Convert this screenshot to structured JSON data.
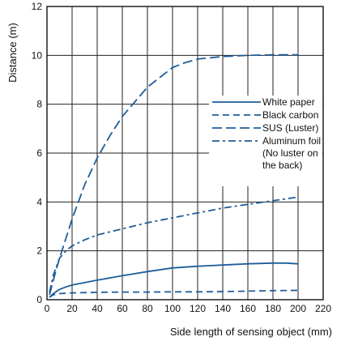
{
  "chart_data": {
    "type": "line",
    "title": "",
    "xlabel": "Side length of sensing object (mm)",
    "ylabel": "Distance (m)",
    "xlim": [
      0,
      220
    ],
    "ylim": [
      0,
      12
    ],
    "x_ticks": [
      0,
      20,
      40,
      60,
      80,
      100,
      120,
      140,
      160,
      180,
      200,
      220
    ],
    "y_ticks": [
      0,
      2,
      4,
      6,
      8,
      10,
      12
    ],
    "grid": true,
    "legend_placement": "center-right",
    "line_color": "#1f5d99",
    "series": [
      {
        "name": "White paper",
        "dash": "solid",
        "x": [
          2,
          5,
          10,
          15,
          20,
          30,
          40,
          60,
          80,
          100,
          120,
          140,
          160,
          180,
          190,
          200
        ],
        "y": [
          0.1,
          0.25,
          0.42,
          0.52,
          0.6,
          0.7,
          0.8,
          0.98,
          1.15,
          1.3,
          1.37,
          1.42,
          1.47,
          1.5,
          1.5,
          1.47
        ]
      },
      {
        "name": "Black carbon",
        "dash": "dashed",
        "x": [
          2,
          5,
          10,
          20,
          40,
          60,
          80,
          100,
          120,
          140,
          160,
          180,
          200
        ],
        "y": [
          0.1,
          0.2,
          0.25,
          0.28,
          0.3,
          0.31,
          0.31,
          0.32,
          0.32,
          0.33,
          0.35,
          0.37,
          0.38
        ]
      },
      {
        "name": "SUS (Luster)",
        "dash": "long-dash",
        "x": [
          2,
          5,
          10,
          15,
          20,
          25,
          30,
          40,
          50,
          60,
          70,
          80,
          90,
          100,
          110,
          120,
          140,
          160,
          180,
          200
        ],
        "y": [
          0.2,
          0.8,
          1.7,
          2.5,
          3.3,
          4.0,
          4.7,
          5.8,
          6.7,
          7.5,
          8.1,
          8.7,
          9.1,
          9.5,
          9.7,
          9.85,
          9.95,
          10.0,
          10.02,
          10.02
        ]
      },
      {
        "name": "Aluminum foil (No luster on the back)",
        "dash": "dash-dot",
        "x": [
          2,
          5,
          10,
          15,
          20,
          30,
          40,
          60,
          80,
          100,
          120,
          140,
          160,
          180,
          200
        ],
        "y": [
          0.3,
          1.0,
          1.7,
          2.0,
          2.2,
          2.45,
          2.65,
          2.9,
          3.15,
          3.35,
          3.55,
          3.75,
          3.9,
          4.05,
          4.2
        ]
      }
    ],
    "legend": [
      {
        "lines": [
          "White paper"
        ],
        "dash": "solid"
      },
      {
        "lines": [
          "Black carbon"
        ],
        "dash": "dashed"
      },
      {
        "lines": [
          "SUS (Luster)"
        ],
        "dash": "long-dash"
      },
      {
        "lines": [
          "Aluminum foil",
          "(No luster on",
          "the back)"
        ],
        "dash": "dash-dot"
      }
    ]
  }
}
